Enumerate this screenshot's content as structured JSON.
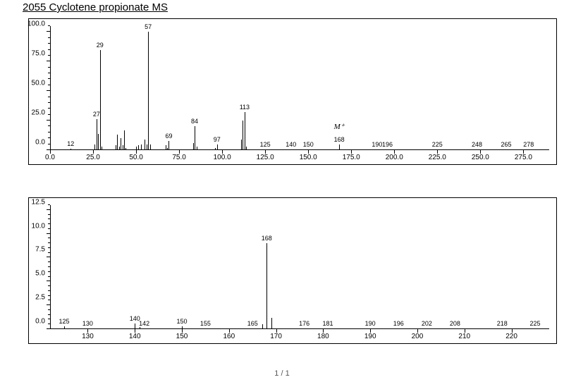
{
  "title": "2055 Cyclotene propionate MS",
  "footer": "1 / 1",
  "colors": {
    "background": "#ffffff",
    "axis": "#000000",
    "peak": "#000000",
    "text": "#000000"
  },
  "top_chart": {
    "type": "mass-spectrum",
    "xlim": [
      0,
      290
    ],
    "ylim": [
      0,
      105
    ],
    "x_ticks_major": [
      0,
      25,
      50,
      75,
      100,
      125,
      150,
      175,
      200,
      225,
      250,
      275
    ],
    "x_tick_labels": [
      "0.0",
      "25.0",
      "50.0",
      "75.0",
      "100.0",
      "125.0",
      "150.0",
      "175.0",
      "200.0",
      "225.0",
      "250.0",
      "275.0"
    ],
    "y_ticks_major": [
      0,
      25,
      50,
      75,
      100
    ],
    "y_tick_labels": [
      "0.0",
      "25.0",
      "50.0",
      "75.0",
      "100.0"
    ],
    "y_minor_step": 5,
    "label_fontsize": 10,
    "mplus_annotation": {
      "mz": 168,
      "y_offset": 20
    },
    "peaks": [
      {
        "mz": 12,
        "intensity": 1,
        "label": "12"
      },
      {
        "mz": 26,
        "intensity": 5
      },
      {
        "mz": 27,
        "intensity": 26,
        "label": "27"
      },
      {
        "mz": 28,
        "intensity": 14
      },
      {
        "mz": 29,
        "intensity": 85,
        "label": "29"
      },
      {
        "mz": 30,
        "intensity": 3
      },
      {
        "mz": 38,
        "intensity": 4
      },
      {
        "mz": 39,
        "intensity": 13
      },
      {
        "mz": 40,
        "intensity": 3
      },
      {
        "mz": 41,
        "intensity": 10
      },
      {
        "mz": 42,
        "intensity": 4
      },
      {
        "mz": 43,
        "intensity": 17
      },
      {
        "mz": 44,
        "intensity": 2
      },
      {
        "mz": 50,
        "intensity": 3
      },
      {
        "mz": 51,
        "intensity": 4
      },
      {
        "mz": 53,
        "intensity": 5
      },
      {
        "mz": 55,
        "intensity": 9
      },
      {
        "mz": 56,
        "intensity": 5
      },
      {
        "mz": 57,
        "intensity": 100,
        "label": "57"
      },
      {
        "mz": 58,
        "intensity": 5
      },
      {
        "mz": 67,
        "intensity": 4
      },
      {
        "mz": 68,
        "intensity": 2
      },
      {
        "mz": 69,
        "intensity": 8,
        "label": "69"
      },
      {
        "mz": 83,
        "intensity": 6
      },
      {
        "mz": 84,
        "intensity": 20,
        "label": "84"
      },
      {
        "mz": 85,
        "intensity": 3
      },
      {
        "mz": 96,
        "intensity": 2
      },
      {
        "mz": 97,
        "intensity": 5,
        "label": "97"
      },
      {
        "mz": 111,
        "intensity": 9
      },
      {
        "mz": 112,
        "intensity": 25
      },
      {
        "mz": 113,
        "intensity": 32,
        "label": "113"
      },
      {
        "mz": 114,
        "intensity": 3
      },
      {
        "mz": 125,
        "intensity": 0.5,
        "label": "125"
      },
      {
        "mz": 140,
        "intensity": 0.5,
        "label": "140"
      },
      {
        "mz": 150,
        "intensity": 0.5,
        "label": "150"
      },
      {
        "mz": 168,
        "intensity": 5,
        "label": "168"
      },
      {
        "mz": 190,
        "intensity": 0.5,
        "label": "190"
      },
      {
        "mz": 196,
        "intensity": 0.5,
        "label": "196"
      },
      {
        "mz": 225,
        "intensity": 0.5,
        "label": "225"
      },
      {
        "mz": 248,
        "intensity": 0.5,
        "label": "248"
      },
      {
        "mz": 265,
        "intensity": 0.5,
        "label": "265"
      },
      {
        "mz": 278,
        "intensity": 0.5,
        "label": "278"
      }
    ]
  },
  "bottom_chart": {
    "type": "mass-spectrum",
    "xlim": [
      122,
      228
    ],
    "ylim": [
      0,
      13
    ],
    "x_ticks_major": [
      130,
      140,
      150,
      160,
      170,
      180,
      190,
      200,
      210,
      220
    ],
    "x_tick_labels": [
      "130",
      "140",
      "150",
      "160",
      "170",
      "180",
      "190",
      "200",
      "210",
      "220"
    ],
    "y_ticks_major": [
      0,
      2.5,
      5.0,
      7.5,
      10.0,
      12.5
    ],
    "y_tick_labels": [
      "0.0",
      "2.5",
      "5.0",
      "7.5",
      "10.0",
      "12.5"
    ],
    "y_minor_step": 0.5,
    "label_fontsize": 10,
    "peaks": [
      {
        "mz": 125,
        "intensity": 0.3,
        "label": "125"
      },
      {
        "mz": 130,
        "intensity": 0.1,
        "label": "130"
      },
      {
        "mz": 140,
        "intensity": 0.6,
        "label": "140"
      },
      {
        "mz": 141,
        "intensity": 0.2
      },
      {
        "mz": 142,
        "intensity": 0.1,
        "label": "142"
      },
      {
        "mz": 150,
        "intensity": 0.3,
        "label": "150"
      },
      {
        "mz": 155,
        "intensity": 0.1,
        "label": "155"
      },
      {
        "mz": 165,
        "intensity": 0.1,
        "label": "165"
      },
      {
        "mz": 167,
        "intensity": 0.5
      },
      {
        "mz": 168,
        "intensity": 9.0,
        "label": "168"
      },
      {
        "mz": 169,
        "intensity": 1.2
      },
      {
        "mz": 176,
        "intensity": 0.1,
        "label": "176"
      },
      {
        "mz": 181,
        "intensity": 0.1,
        "label": "181"
      },
      {
        "mz": 190,
        "intensity": 0.1,
        "label": "190"
      },
      {
        "mz": 196,
        "intensity": 0.1,
        "label": "196"
      },
      {
        "mz": 202,
        "intensity": 0.1,
        "label": "202"
      },
      {
        "mz": 208,
        "intensity": 0.1,
        "label": "208"
      },
      {
        "mz": 218,
        "intensity": 0.1,
        "label": "218"
      },
      {
        "mz": 225,
        "intensity": 0.1,
        "label": "225"
      }
    ]
  }
}
